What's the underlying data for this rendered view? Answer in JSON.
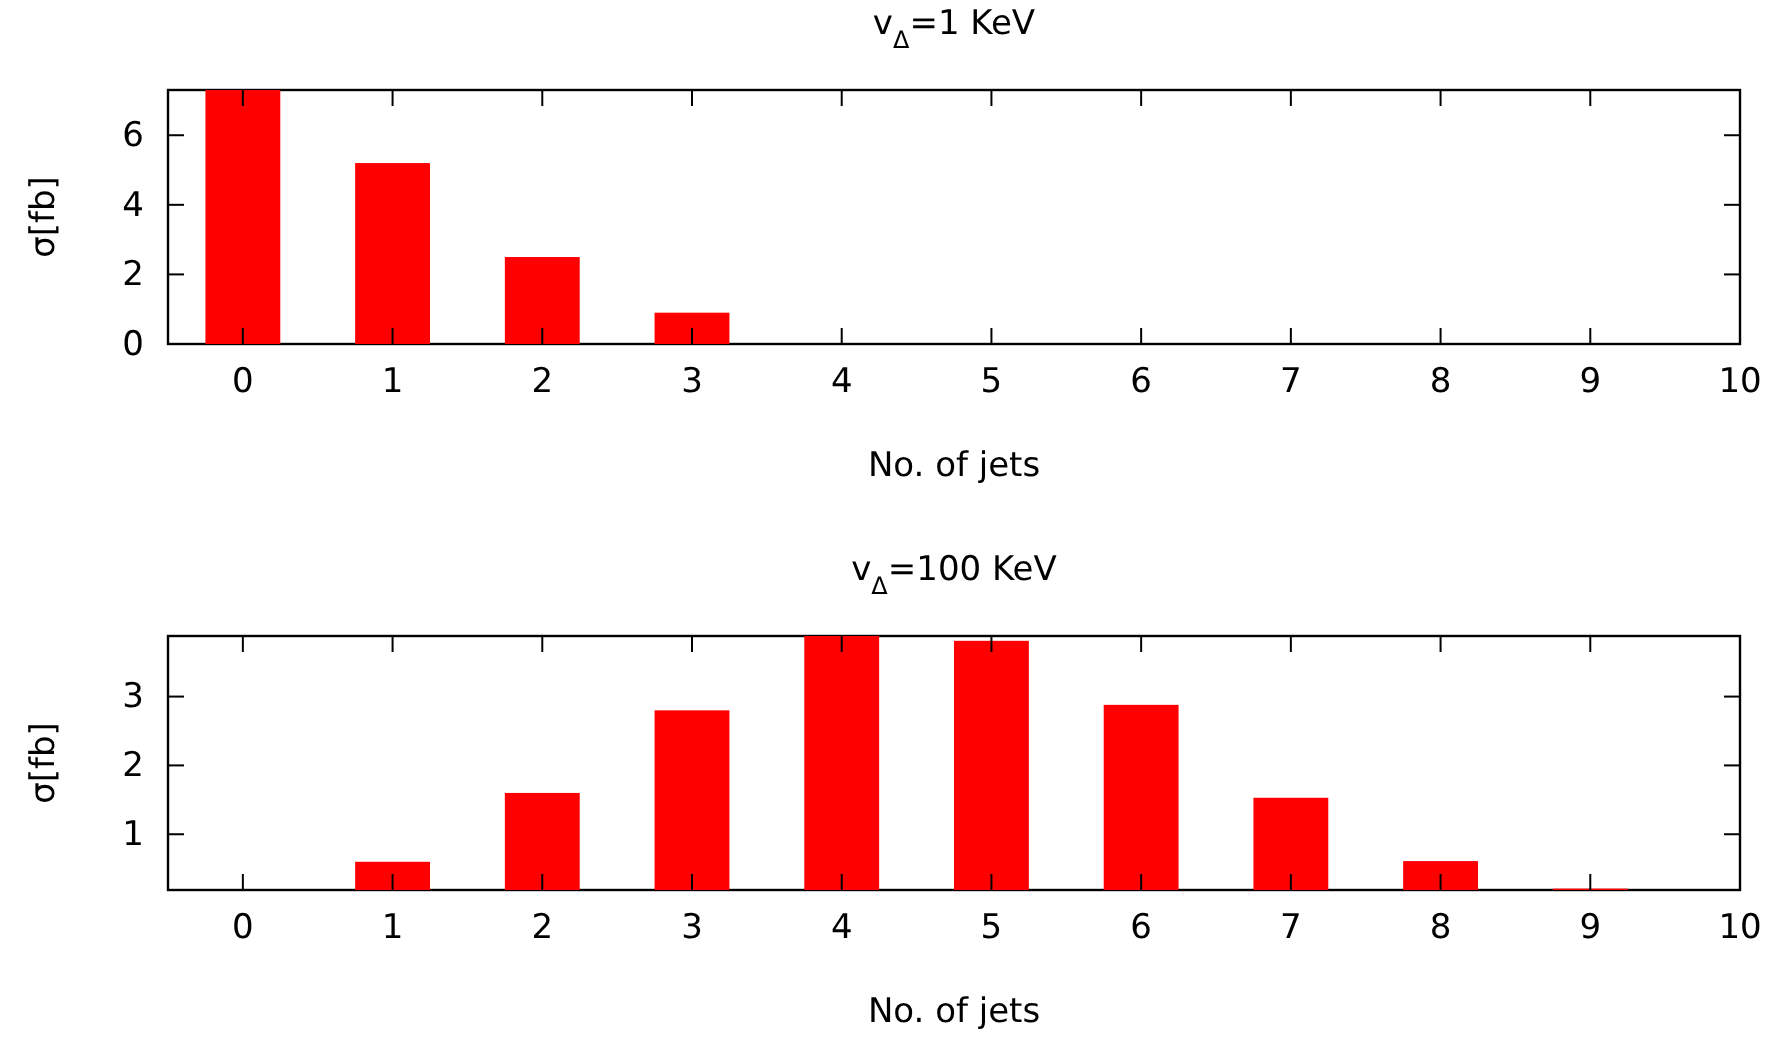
{
  "chart_data": [
    {
      "type": "bar",
      "title": "v$_{Δ}$=1 KeV",
      "xlabel": "No. of jets",
      "ylabel": "σ[fb]",
      "x": [
        0,
        1,
        2,
        3
      ],
      "series": [
        {
          "color": "#ff0000",
          "values": [
            7.3,
            5.2,
            2.5,
            0.9
          ]
        }
      ],
      "xlim": [
        -0.5,
        10
      ],
      "xticks": [
        0,
        1,
        2,
        3,
        4,
        5,
        6,
        7,
        8,
        9,
        10
      ],
      "ylim": [
        0,
        7.3
      ],
      "yticks": [
        0,
        2,
        4,
        6
      ]
    },
    {
      "type": "bar",
      "title": "v$_{Δ}$=100 KeV",
      "xlabel": "No. of jets",
      "ylabel": "σ[fb]",
      "x": [
        1,
        2,
        3,
        4,
        5,
        6,
        7,
        8,
        9
      ],
      "series": [
        {
          "color": "#ff0000",
          "values": [
            0.6,
            1.6,
            2.8,
            3.88,
            3.81,
            2.88,
            1.53,
            0.61,
            0.21
          ]
        }
      ],
      "xlim": [
        -0.5,
        10
      ],
      "xticks": [
        0,
        1,
        2,
        3,
        4,
        5,
        6,
        7,
        8,
        9,
        10
      ],
      "ylim": [
        0.19,
        3.88
      ],
      "yticks": [
        1,
        2,
        3
      ]
    }
  ]
}
